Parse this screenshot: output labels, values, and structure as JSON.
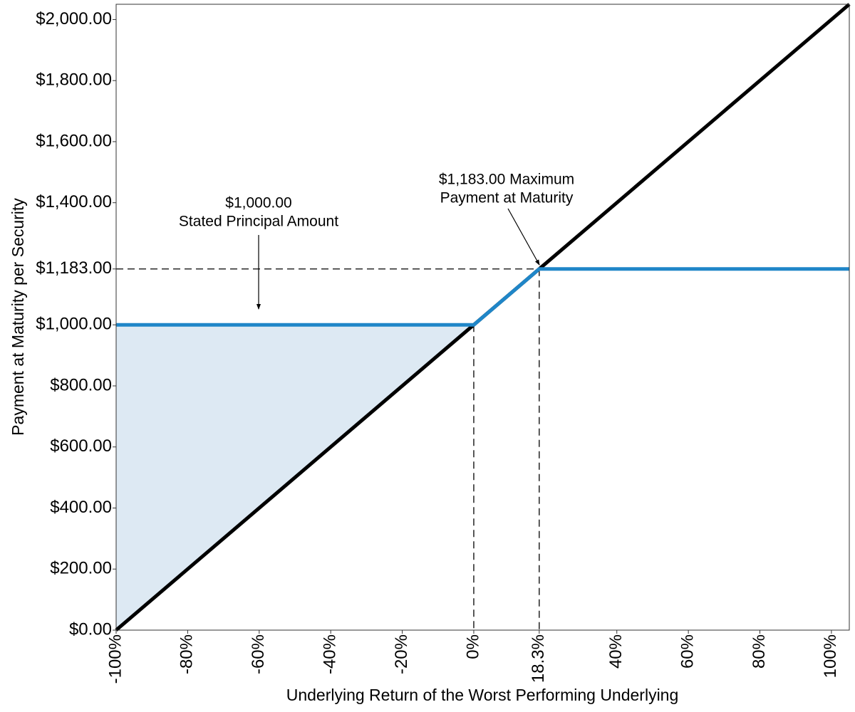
{
  "chart_data": {
    "type": "line",
    "xlabel": "Underlying Return of the Worst Performing Underlying",
    "ylabel": "Payment at Maturity per Security",
    "series": [
      {
        "color": "#000000",
        "x": [
          -100,
          105
        ],
        "values": [
          0,
          2050
        ]
      },
      {
        "color": "#1f86c8",
        "x": [
          -100,
          0,
          18.3,
          105
        ],
        "values": [
          1000,
          1000,
          1183,
          1183
        ]
      }
    ],
    "shade_color": "#dde9f3",
    "annotations": [
      {
        "lines": [
          "$1,000.00",
          "Stated Principal Amount"
        ]
      },
      {
        "lines": [
          "$1,183.00 Maximum",
          "Payment at Maturity"
        ]
      }
    ],
    "xlim": [
      -100,
      105
    ],
    "ylim": [
      0,
      2050
    ],
    "xticks": [
      {
        "value": -100,
        "label": "-100%"
      },
      {
        "value": -80,
        "label": "-80%"
      },
      {
        "value": -60,
        "label": "-60%"
      },
      {
        "value": -40,
        "label": "-40%"
      },
      {
        "value": -20,
        "label": "-20%"
      },
      {
        "value": 0,
        "label": "0%"
      },
      {
        "value": 18.3,
        "label": "18.3%"
      },
      {
        "value": 40,
        "label": "40%"
      },
      {
        "value": 60,
        "label": "60%"
      },
      {
        "value": 80,
        "label": "80%"
      },
      {
        "value": 100,
        "label": "100%"
      }
    ],
    "yticks": [
      {
        "value": 0,
        "label": "$0.00"
      },
      {
        "value": 200,
        "label": "$200.00"
      },
      {
        "value": 400,
        "label": "$400.00"
      },
      {
        "value": 600,
        "label": "$600.00"
      },
      {
        "value": 800,
        "label": "$800.00"
      },
      {
        "value": 1000,
        "label": "$1,000.00"
      },
      {
        "value": 1183,
        "label": "$1,183.00"
      },
      {
        "value": 1400,
        "label": "$1,400.00"
      },
      {
        "value": 1600,
        "label": "$1,600.00"
      },
      {
        "value": 1800,
        "label": "$1,800.00"
      },
      {
        "value": 2000,
        "label": "$2,000.00"
      }
    ]
  }
}
